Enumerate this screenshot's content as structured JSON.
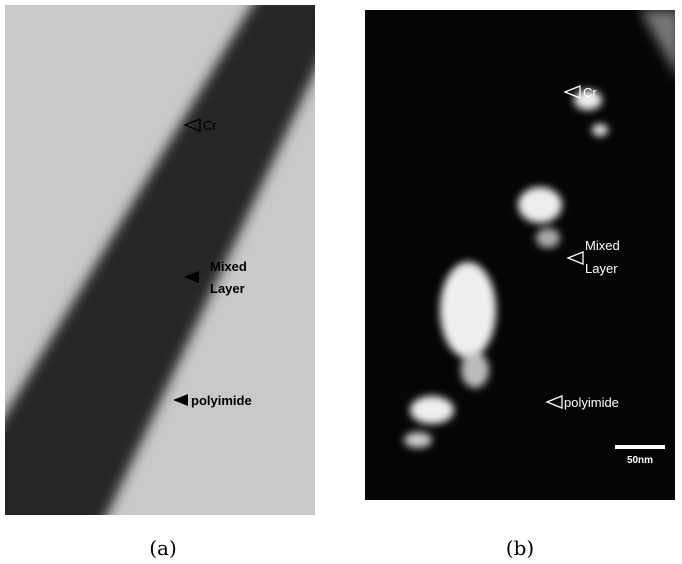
{
  "panels": [
    {
      "caption": "(a)",
      "annotations": [
        {
          "lines": [
            "Cr"
          ]
        },
        {
          "lines": [
            "Mixed",
            "Layer"
          ]
        },
        {
          "lines": [
            "polyimide"
          ]
        }
      ]
    },
    {
      "caption": "(b)",
      "annotations": [
        {
          "lines": [
            "Cr"
          ]
        },
        {
          "lines": [
            "Mixed",
            "Layer"
          ]
        },
        {
          "lines": [
            "polyimide"
          ]
        }
      ],
      "scale_bar": "50nm"
    }
  ]
}
